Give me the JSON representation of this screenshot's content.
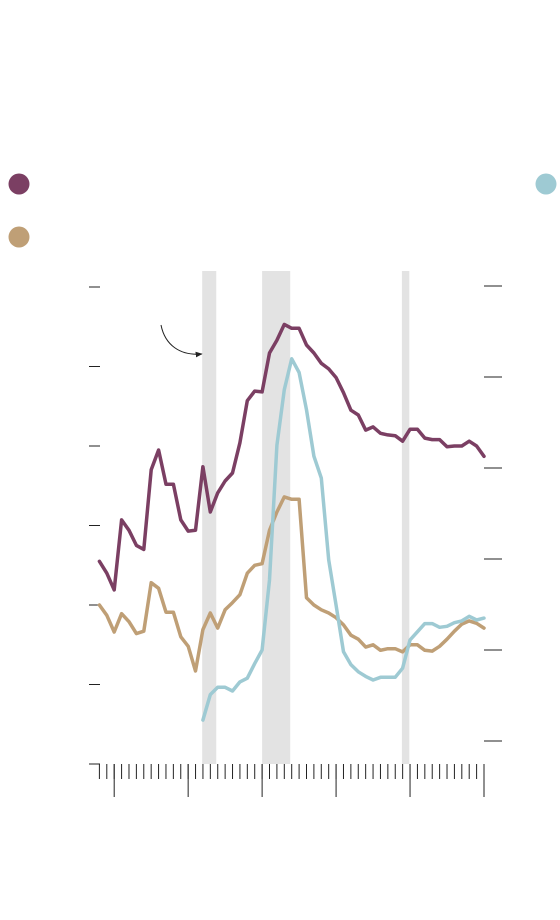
{
  "chart_data": {
    "type": "line",
    "x": [
      -2,
      -1,
      0,
      1,
      2,
      3,
      4,
      5,
      6,
      7,
      8,
      9,
      10,
      11,
      12,
      13,
      14,
      15,
      16,
      17,
      18,
      19,
      20,
      21,
      22,
      23,
      24,
      25,
      26,
      27,
      28,
      29,
      30,
      31,
      32,
      33,
      34,
      35,
      36,
      37,
      38,
      39,
      40,
      41,
      42,
      43,
      44,
      45,
      46,
      47,
      48,
      49,
      50
    ],
    "xlim": [
      -3,
      50
    ],
    "xticks": [
      0,
      10,
      20,
      30,
      40,
      50
    ],
    "xminorticks": [
      -2,
      -1,
      0,
      1,
      2,
      3,
      4,
      5,
      6,
      7,
      8,
      9,
      10,
      11,
      12,
      13,
      14,
      15,
      16,
      17,
      18,
      19,
      20,
      21,
      22,
      23,
      24,
      25,
      26,
      27,
      28,
      29,
      30,
      31,
      32,
      33,
      34,
      35,
      36,
      37,
      38,
      39,
      40,
      41,
      42,
      43,
      44,
      45,
      46,
      47,
      48,
      49,
      50
    ],
    "ylim": [
      0,
      6
    ],
    "yticks": [
      0,
      1,
      2,
      3,
      4,
      5,
      6
    ],
    "y2lim": [
      0,
      5
    ],
    "y2ticks": [
      0,
      1,
      2,
      3,
      4,
      5
    ],
    "shaded": [
      [
        11.9,
        13.8
      ],
      [
        20,
        23.8
      ],
      [
        38.9,
        39.9
      ]
    ],
    "shade_color": "#e3e3e3",
    "series": [
      {
        "color": "#7b3f63",
        "values": [
          2.55,
          2.4,
          2.19,
          3.07,
          2.94,
          2.75,
          2.7,
          3.7,
          3.95,
          3.52,
          3.52,
          3.07,
          2.93,
          2.94,
          3.74,
          3.17,
          3.41,
          3.56,
          3.66,
          4.04,
          4.57,
          4.69,
          4.68,
          5.17,
          5.33,
          5.53,
          5.48,
          5.48,
          5.27,
          5.17,
          5.04,
          4.97,
          4.86,
          4.67,
          4.45,
          4.39,
          4.2,
          4.24,
          4.16,
          4.14,
          4.13,
          4.06,
          4.21,
          4.21,
          4.1,
          4.08,
          4.08,
          3.99,
          4.0,
          4.0,
          4.06,
          4.0,
          3.87
        ]
      },
      {
        "color": "#bf9f76",
        "values": [
          2.0,
          1.87,
          1.66,
          1.89,
          1.79,
          1.64,
          1.67,
          2.28,
          2.21,
          1.91,
          1.91,
          1.6,
          1.48,
          1.17,
          1.69,
          1.9,
          1.71,
          1.94,
          2.03,
          2.13,
          2.4,
          2.5,
          2.52,
          2.94,
          3.17,
          3.36,
          3.33,
          3.33,
          2.09,
          2.0,
          1.94,
          1.9,
          1.84,
          1.75,
          1.62,
          1.57,
          1.47,
          1.5,
          1.43,
          1.45,
          1.45,
          1.41,
          1.5,
          1.5,
          1.43,
          1.42,
          1.48,
          1.57,
          1.67,
          1.76,
          1.8,
          1.77,
          1.71
        ]
      },
      {
        "color": "#9ecad3",
        "axis": "y2",
        "values": [
          null,
          null,
          null,
          null,
          null,
          null,
          null,
          null,
          null,
          null,
          null,
          null,
          null,
          null,
          0.23,
          0.51,
          0.59,
          0.59,
          0.55,
          0.65,
          0.69,
          0.85,
          1.0,
          1.77,
          3.25,
          3.86,
          4.2,
          4.05,
          3.64,
          3.13,
          2.89,
          1.99,
          1.49,
          0.98,
          0.84,
          0.76,
          0.71,
          0.67,
          0.7,
          0.7,
          0.7,
          0.8,
          1.11,
          1.2,
          1.29,
          1.29,
          1.25,
          1.26,
          1.3,
          1.32,
          1.37,
          1.33,
          1.35
        ]
      }
    ]
  }
}
